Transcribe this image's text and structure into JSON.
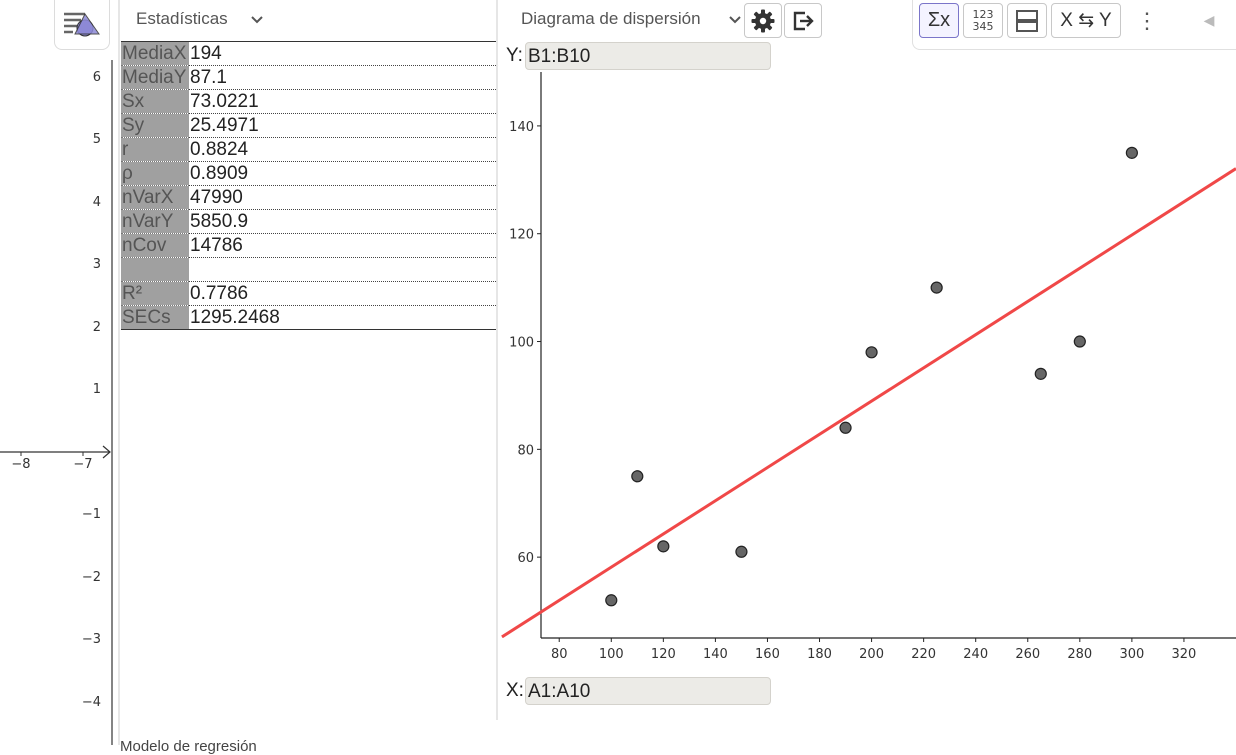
{
  "graphics": {
    "y_ticks": [
      "6",
      "5",
      "4",
      "3",
      "2",
      "1",
      "−1",
      "−2",
      "−3",
      "−4"
    ],
    "x_ticks": [
      "−8",
      "−7"
    ]
  },
  "stats": {
    "title": "Estadísticas",
    "rows": [
      {
        "label": "MediaX",
        "value": "194"
      },
      {
        "label": "MediaY",
        "value": "87.1"
      },
      {
        "label": "Sx",
        "value": "73.0221"
      },
      {
        "label": "Sy",
        "value": "25.4971"
      },
      {
        "label": "r",
        "value": "0.8824"
      },
      {
        "label": "ρ",
        "value": "0.8909"
      },
      {
        "label": "nVarX",
        "value": "47990"
      },
      {
        "label": "nVarY",
        "value": "5850.9"
      },
      {
        "label": "nCov",
        "value": "14786"
      },
      {
        "label": "",
        "value": ""
      },
      {
        "label": "R²",
        "value": "0.7786"
      },
      {
        "label": "SECs",
        "value": "1295.2468"
      }
    ],
    "footer": "Modelo de regresión"
  },
  "plot": {
    "type_label": "Diagrama de dispersión",
    "y_prefix": "Y:",
    "y_source": "B1:B10",
    "x_prefix": "X:",
    "x_source": "A1:A10",
    "toolbar": {
      "sum_label": "Σx",
      "num_line1": "123",
      "num_line2": "345",
      "swap_label": "X ⇆ Y",
      "more_label": "⋮",
      "collapse_label": "◀"
    }
  },
  "chart_data": {
    "type": "scatter",
    "x": [
      100,
      110,
      120,
      150,
      190,
      200,
      225,
      265,
      280,
      300
    ],
    "y": [
      52,
      75,
      62,
      61,
      84,
      98,
      110,
      94,
      100,
      135
    ],
    "xlim": [
      73,
      340
    ],
    "ylim": [
      45,
      150
    ],
    "xticks": [
      80,
      100,
      120,
      140,
      160,
      180,
      200,
      220,
      240,
      260,
      280,
      300,
      320
    ],
    "yticks": [
      60,
      80,
      100,
      120,
      140
    ],
    "regression": {
      "slope": 0.3081,
      "intercept": 27.33,
      "color": "#f04848"
    },
    "point_color": "#666666"
  },
  "colors": {
    "accent": "#7b75c9",
    "regression": "#f04848",
    "label_cell": "#a0a0a0"
  }
}
